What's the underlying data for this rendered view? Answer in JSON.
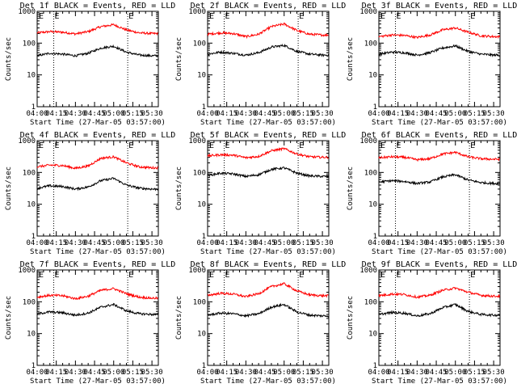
{
  "figure": {
    "ylabel": "Counts/sec",
    "xlabel": "Start Time (27-Mar-05 03:57:00)"
  },
  "chart_data": [
    {
      "type": "line",
      "title": "Det 1f BLACK = Events, RED = LLD",
      "xlabel": "Start Time (27-Mar-05 03:57:00)",
      "ylabel": "Counts/sec",
      "yscale": "log",
      "ylim": [
        1,
        1000
      ],
      "xlim": [
        "04:00",
        "05:35"
      ],
      "x_ticks": [
        "04:00",
        "04:15",
        "04:30",
        "04:45",
        "05:00",
        "05:15",
        "05:30"
      ],
      "y_ticks": [
        "1",
        "10",
        "100",
        "1000"
      ],
      "markers": [
        "04:13",
        "05:11"
      ],
      "marker_label": "E",
      "x": [
        "04:00",
        "04:10",
        "04:20",
        "04:30",
        "04:40",
        "04:50",
        "05:00",
        "05:10",
        "05:20",
        "05:30",
        "05:35"
      ],
      "series": [
        {
          "color": "#ff0000",
          "values": [
            210,
            230,
            220,
            195,
            230,
            330,
            380,
            260,
            210,
            200,
            200
          ]
        },
        {
          "color": "#000000",
          "values": [
            40,
            48,
            45,
            40,
            48,
            70,
            80,
            52,
            42,
            40,
            40
          ]
        }
      ],
      "grid": false,
      "legend": "none"
    },
    {
      "type": "line",
      "title": "Det 2f BLACK = Events, RED = LLD",
      "xlabel": "Start Time (27-Mar-05 03:57:00)",
      "ylabel": "Counts/sec",
      "yscale": "log",
      "ylim": [
        1,
        1000
      ],
      "xlim": [
        "04:00",
        "05:35"
      ],
      "x_ticks": [
        "04:00",
        "04:15",
        "04:30",
        "04:45",
        "05:00",
        "05:15",
        "05:30"
      ],
      "y_ticks": [
        "1",
        "10",
        "100",
        "1000"
      ],
      "markers": [
        "04:13",
        "05:11"
      ],
      "marker_label": "E",
      "x": [
        "04:00",
        "04:10",
        "04:20",
        "04:30",
        "04:40",
        "04:50",
        "05:00",
        "05:10",
        "05:20",
        "05:30",
        "05:35"
      ],
      "series": [
        {
          "color": "#ff0000",
          "values": [
            190,
            210,
            200,
            160,
            190,
            330,
            400,
            250,
            190,
            180,
            180
          ]
        },
        {
          "color": "#000000",
          "values": [
            45,
            52,
            48,
            42,
            50,
            75,
            85,
            55,
            45,
            42,
            42
          ]
        }
      ],
      "grid": false,
      "legend": "none"
    },
    {
      "type": "line",
      "title": "Det 3f BLACK = Events, RED = LLD",
      "xlabel": "Start Time (27-Mar-05 03:57:00)",
      "ylabel": "Counts/sec",
      "yscale": "log",
      "ylim": [
        1,
        1000
      ],
      "xlim": [
        "04:00",
        "05:35"
      ],
      "x_ticks": [
        "04:00",
        "04:15",
        "04:30",
        "04:45",
        "05:00",
        "05:15",
        "05:30"
      ],
      "y_ticks": [
        "1",
        "10",
        "100",
        "1000"
      ],
      "markers": [
        "04:13",
        "05:11"
      ],
      "marker_label": "E",
      "x": [
        "04:00",
        "04:10",
        "04:20",
        "04:30",
        "04:40",
        "04:50",
        "05:00",
        "05:10",
        "05:20",
        "05:30",
        "05:35"
      ],
      "series": [
        {
          "color": "#ff0000",
          "values": [
            160,
            180,
            175,
            150,
            180,
            260,
            300,
            220,
            170,
            160,
            160
          ]
        },
        {
          "color": "#000000",
          "values": [
            45,
            52,
            50,
            42,
            50,
            70,
            82,
            55,
            45,
            42,
            42
          ]
        }
      ],
      "grid": false,
      "legend": "none"
    },
    {
      "type": "line",
      "title": "Det 4f BLACK = Events, RED = LLD",
      "xlabel": "Start Time (27-Mar-05 03:57:00)",
      "ylabel": "Counts/sec",
      "yscale": "log",
      "ylim": [
        1,
        1000
      ],
      "xlim": [
        "04:00",
        "05:35"
      ],
      "x_ticks": [
        "04:00",
        "04:15",
        "04:30",
        "04:45",
        "05:00",
        "05:15",
        "05:30"
      ],
      "y_ticks": [
        "1",
        "10",
        "100",
        "1000"
      ],
      "markers": [
        "04:13",
        "05:11"
      ],
      "marker_label": "E",
      "x": [
        "04:00",
        "04:10",
        "04:20",
        "04:30",
        "04:40",
        "04:50",
        "05:00",
        "05:10",
        "05:20",
        "05:30",
        "05:35"
      ],
      "series": [
        {
          "color": "#ff0000",
          "values": [
            150,
            170,
            165,
            135,
            160,
            280,
            310,
            200,
            150,
            140,
            140
          ]
        },
        {
          "color": "#000000",
          "values": [
            32,
            38,
            36,
            30,
            35,
            55,
            65,
            40,
            32,
            30,
            30
          ]
        }
      ],
      "grid": false,
      "legend": "none"
    },
    {
      "type": "line",
      "title": "Det 5f BLACK = Events, RED = LLD",
      "xlabel": "Start Time (27-Mar-05 03:57:00)",
      "ylabel": "Counts/sec",
      "yscale": "log",
      "ylim": [
        1,
        1000
      ],
      "xlim": [
        "04:00",
        "05:35"
      ],
      "x_ticks": [
        "04:00",
        "04:15",
        "04:30",
        "04:45",
        "05:00",
        "05:15",
        "05:30"
      ],
      "y_ticks": [
        "1",
        "10",
        "100",
        "1000"
      ],
      "markers": [
        "04:13",
        "05:11"
      ],
      "marker_label": "E",
      "x": [
        "04:00",
        "04:10",
        "04:20",
        "04:30",
        "04:40",
        "04:50",
        "05:00",
        "05:10",
        "05:20",
        "05:30",
        "05:35"
      ],
      "series": [
        {
          "color": "#ff0000",
          "values": [
            330,
            360,
            350,
            290,
            320,
            480,
            560,
            380,
            310,
            300,
            300
          ]
        },
        {
          "color": "#000000",
          "values": [
            80,
            95,
            90,
            75,
            85,
            125,
            140,
            95,
            78,
            75,
            75
          ]
        }
      ],
      "grid": false,
      "legend": "none"
    },
    {
      "type": "line",
      "title": "Det 6f BLACK = Events, RED = LLD",
      "xlabel": "Start Time (27-Mar-05 03:57:00)",
      "ylabel": "Counts/sec",
      "yscale": "log",
      "ylim": [
        1,
        1000
      ],
      "xlim": [
        "04:00",
        "05:35"
      ],
      "x_ticks": [
        "04:00",
        "04:15",
        "04:30",
        "04:45",
        "05:00",
        "05:15",
        "05:30"
      ],
      "y_ticks": [
        "1",
        "10",
        "100",
        "1000"
      ],
      "markers": [
        "04:13",
        "05:11"
      ],
      "marker_label": "E",
      "x": [
        "04:00",
        "04:10",
        "04:20",
        "04:30",
        "04:40",
        "04:50",
        "05:00",
        "05:10",
        "05:20",
        "05:30",
        "05:35"
      ],
      "series": [
        {
          "color": "#ff0000",
          "values": [
            290,
            310,
            300,
            250,
            270,
            380,
            430,
            310,
            270,
            260,
            260
          ]
        },
        {
          "color": "#000000",
          "values": [
            50,
            55,
            52,
            45,
            50,
            72,
            85,
            58,
            48,
            45,
            45
          ]
        }
      ],
      "grid": false,
      "legend": "none"
    },
    {
      "type": "line",
      "title": "Det 7f BLACK = Events, RED = LLD",
      "xlabel": "Start Time (27-Mar-05 03:57:00)",
      "ylabel": "Counts/sec",
      "yscale": "log",
      "ylim": [
        1,
        1000
      ],
      "xlim": [
        "04:00",
        "05:35"
      ],
      "x_ticks": [
        "04:00",
        "04:15",
        "04:30",
        "04:45",
        "05:00",
        "05:15",
        "05:30"
      ],
      "y_ticks": [
        "1",
        "10",
        "100",
        "1000"
      ],
      "markers": [
        "04:13",
        "05:11"
      ],
      "marker_label": "E",
      "x": [
        "04:00",
        "04:10",
        "04:20",
        "04:30",
        "04:40",
        "04:50",
        "05:00",
        "05:10",
        "05:20",
        "05:30",
        "05:35"
      ],
      "series": [
        {
          "color": "#ff0000",
          "values": [
            140,
            160,
            155,
            125,
            150,
            230,
            260,
            180,
            140,
            130,
            130
          ]
        },
        {
          "color": "#000000",
          "values": [
            42,
            48,
            45,
            38,
            44,
            68,
            82,
            52,
            42,
            40,
            40
          ]
        }
      ],
      "grid": false,
      "legend": "none"
    },
    {
      "type": "line",
      "title": "Det 8f BLACK = Events, RED = LLD",
      "xlabel": "Start Time (27-Mar-05 03:57:00)",
      "ylabel": "Counts/sec",
      "yscale": "log",
      "ylim": [
        1,
        1000
      ],
      "xlim": [
        "04:00",
        "05:35"
      ],
      "x_ticks": [
        "04:00",
        "04:15",
        "04:30",
        "04:45",
        "05:00",
        "05:15",
        "05:30"
      ],
      "y_ticks": [
        "1",
        "10",
        "100",
        "1000"
      ],
      "markers": [
        "04:13",
        "05:11"
      ],
      "marker_label": "E",
      "x": [
        "04:00",
        "04:10",
        "04:20",
        "04:30",
        "04:40",
        "04:50",
        "05:00",
        "05:10",
        "05:20",
        "05:30",
        "05:35"
      ],
      "series": [
        {
          "color": "#ff0000",
          "values": [
            160,
            185,
            175,
            145,
            180,
            300,
            370,
            220,
            165,
            155,
            155
          ]
        },
        {
          "color": "#000000",
          "values": [
            38,
            44,
            42,
            36,
            42,
            68,
            82,
            48,
            38,
            36,
            36
          ]
        }
      ],
      "grid": false,
      "legend": "none"
    },
    {
      "type": "line",
      "title": "Det 9f BLACK = Events, RED = LLD",
      "xlabel": "Start Time (27-Mar-05 03:57:00)",
      "ylabel": "Counts/sec",
      "yscale": "log",
      "ylim": [
        1,
        1000
      ],
      "xlim": [
        "04:00",
        "05:35"
      ],
      "x_ticks": [
        "04:00",
        "04:15",
        "04:30",
        "04:45",
        "05:00",
        "05:15",
        "05:30"
      ],
      "y_ticks": [
        "1",
        "10",
        "100",
        "1000"
      ],
      "markers": [
        "04:13",
        "05:11"
      ],
      "marker_label": "E",
      "x": [
        "04:00",
        "04:10",
        "04:20",
        "04:30",
        "04:40",
        "04:50",
        "05:00",
        "05:10",
        "05:20",
        "05:30",
        "05:35"
      ],
      "series": [
        {
          "color": "#ff0000",
          "values": [
            155,
            175,
            170,
            140,
            160,
            230,
            270,
            200,
            160,
            150,
            150
          ]
        },
        {
          "color": "#000000",
          "values": [
            40,
            46,
            44,
            36,
            42,
            65,
            82,
            50,
            40,
            38,
            38
          ]
        }
      ],
      "grid": false,
      "legend": "none"
    }
  ]
}
